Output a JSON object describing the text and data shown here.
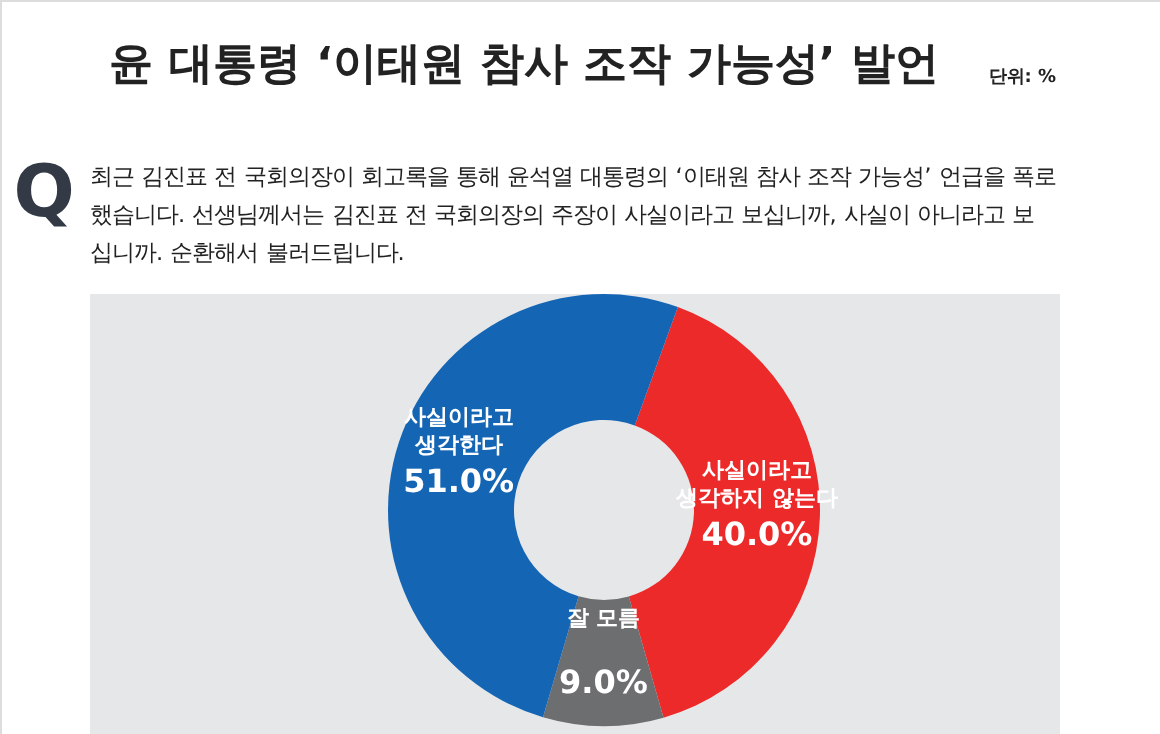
{
  "chart_data": {
    "type": "donut",
    "title": "윤 대통령 ‘이태원 참사 조작 가능성’ 발언",
    "subtitle": "최근 김진표 전 국회의장이 회고록을 통해 윤석열 대통령의 ‘이태원 참사 조작 가능성’ 언급을 폭로\n했습니다. 선생님께서는 김진표 전 국회의장의 주장이 사실이라고 보십니까, 사실이 아니라고 보\n십니까. 순환해서 불러드립니다.",
    "annotations": [
      "단위: %",
      "Q"
    ],
    "categories": [
      "사실이라고\n생각하지 않는다",
      "잘 모름",
      "사실이라고\n생각한다"
    ],
    "values": [
      40.0,
      9.0,
      51.0
    ],
    "value_labels": [
      "40.0%",
      "9.0%",
      "51.0%"
    ],
    "colors": [
      "#ec2a2a",
      "#6d6e70",
      "#1565b5"
    ]
  }
}
